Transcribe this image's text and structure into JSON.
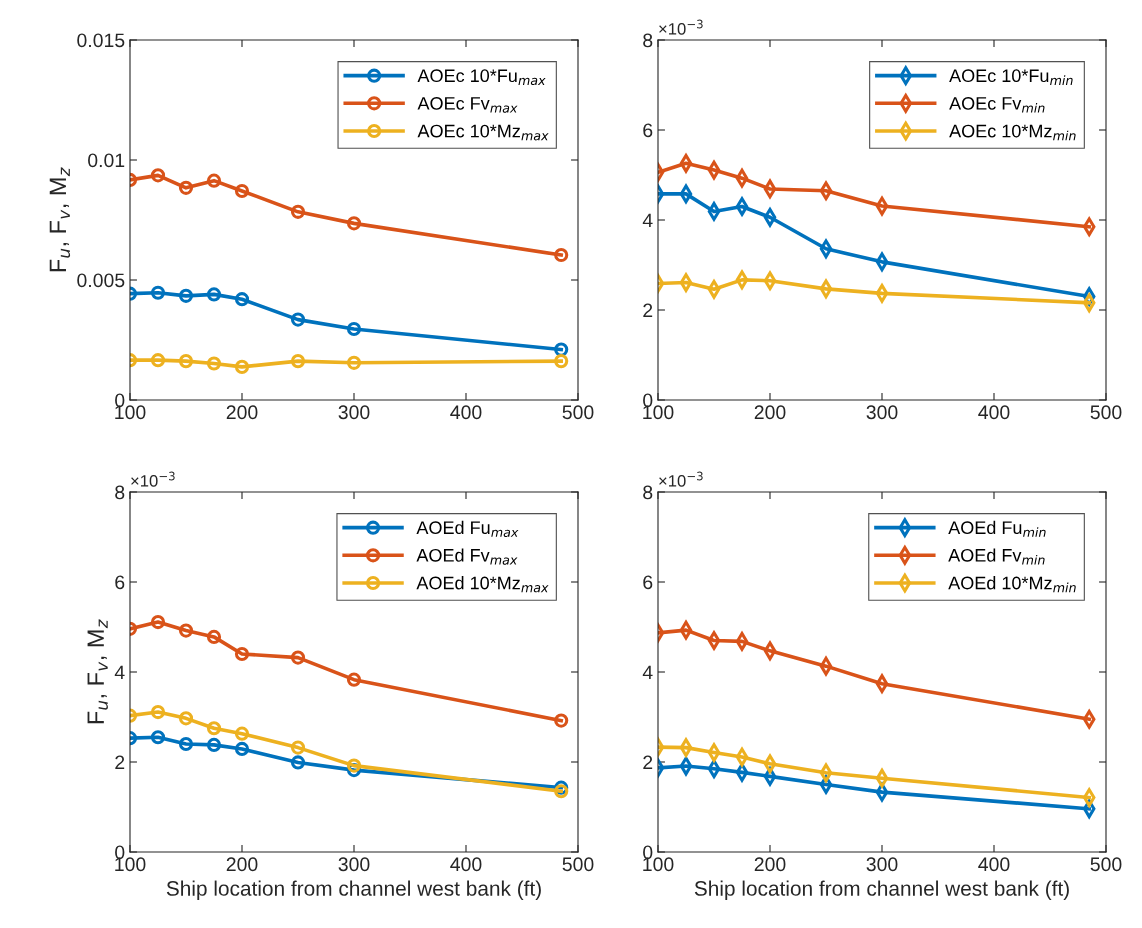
{
  "chart_data": [
    {
      "type": "line",
      "x": [
        100,
        125,
        150,
        175,
        200,
        250,
        300,
        485
      ],
      "ylabel": "F$_{u}$, F$_{v}$, M$_{z}$",
      "marker": "circle",
      "legend": "top right",
      "grid": false,
      "tick_labels": "xy",
      "xlim": [
        100,
        500
      ],
      "xticks": [
        100,
        200,
        300,
        400,
        500
      ],
      "ylim": [
        0,
        0.015
      ],
      "yticks": [
        0,
        0.005,
        0.01,
        0.015
      ],
      "series": [
        {
          "name": "AOEc 10*Fu$_{max}$",
          "color": "#0072bd",
          "values": [
            0.00443,
            0.00447,
            0.00434,
            0.0044,
            0.0042,
            0.00335,
            0.00296,
            0.0021
          ]
        },
        {
          "name": "AOEc Fv$_{max}$",
          "color": "#d95319",
          "values": [
            0.00917,
            0.00936,
            0.00884,
            0.00914,
            0.00871,
            0.00784,
            0.00736,
            0.00604
          ]
        },
        {
          "name": "AOEc 10*Mz$_{max}$",
          "color": "#edb120",
          "values": [
            0.00166,
            0.00166,
            0.00162,
            0.00152,
            0.00138,
            0.00162,
            0.00155,
            0.00162
          ]
        }
      ]
    },
    {
      "type": "line",
      "x": [
        100,
        125,
        150,
        175,
        200,
        250,
        300,
        485
      ],
      "marker": "diamond",
      "legend": "top right",
      "grid": false,
      "annotations": [
        "×10$^{−3}$"
      ],
      "xlim": [
        100,
        500
      ],
      "xticks": [
        100,
        200,
        300,
        400,
        500
      ],
      "ylim": [
        0,
        8
      ],
      "yticks": [
        0,
        2,
        4,
        6,
        8
      ],
      "series": [
        {
          "name": "AOEc 10*Fu$_{min}$",
          "color": "#0072bd",
          "values": [
            4.58,
            4.58,
            4.19,
            4.3,
            4.06,
            3.36,
            3.07,
            2.3
          ]
        },
        {
          "name": "AOEc Fv$_{min}$",
          "color": "#d95319",
          "values": [
            5.06,
            5.26,
            5.11,
            4.93,
            4.69,
            4.65,
            4.31,
            3.85
          ]
        },
        {
          "name": "AOEc 10*Mz$_{min}$",
          "color": "#edb120",
          "values": [
            2.59,
            2.61,
            2.46,
            2.67,
            2.65,
            2.47,
            2.37,
            2.16
          ]
        }
      ]
    },
    {
      "type": "line",
      "x": [
        100,
        125,
        150,
        175,
        200,
        250,
        300,
        485
      ],
      "xlabel": "Ship location from channel west bank (ft)",
      "ylabel": "F$_{u}$, F$_{v}$, M$_{z}$",
      "marker": "circle",
      "legend": "top right",
      "grid": false,
      "annotations": [
        "×10$^{−3}$"
      ],
      "xlim": [
        100,
        500
      ],
      "xticks": [
        100,
        200,
        300,
        400,
        500
      ],
      "ylim": [
        0,
        8
      ],
      "yticks": [
        0,
        2,
        4,
        6,
        8
      ],
      "series": [
        {
          "name": "AOEd Fu$_{max}$",
          "color": "#0072bd",
          "values": [
            2.53,
            2.55,
            2.4,
            2.38,
            2.29,
            1.99,
            1.82,
            1.43
          ]
        },
        {
          "name": "AOEd Fv$_{max}$",
          "color": "#d95319",
          "values": [
            4.96,
            5.11,
            4.92,
            4.78,
            4.4,
            4.32,
            3.83,
            2.92
          ]
        },
        {
          "name": "AOEd 10*Mz$_{max}$",
          "color": "#edb120",
          "values": [
            3.03,
            3.11,
            2.97,
            2.75,
            2.63,
            2.32,
            1.92,
            1.35
          ]
        }
      ]
    },
    {
      "type": "line",
      "x": [
        100,
        125,
        150,
        175,
        200,
        250,
        300,
        485
      ],
      "xlabel": "Ship location from channel west bank (ft)",
      "marker": "diamond",
      "legend": "top right",
      "grid": false,
      "annotations": [
        "×10$^{−3}$"
      ],
      "xlim": [
        100,
        500
      ],
      "xticks": [
        100,
        200,
        300,
        400,
        500
      ],
      "ylim": [
        0,
        8
      ],
      "yticks": [
        0,
        2,
        4,
        6,
        8
      ],
      "series": [
        {
          "name": "AOEd Fu$_{min}$",
          "color": "#0072bd",
          "values": [
            1.87,
            1.91,
            1.85,
            1.77,
            1.68,
            1.5,
            1.33,
            0.96
          ]
        },
        {
          "name": "AOEd Fv$_{min}$",
          "color": "#d95319",
          "values": [
            4.87,
            4.93,
            4.7,
            4.68,
            4.47,
            4.13,
            3.74,
            2.95
          ]
        },
        {
          "name": "AOEd 10*Mz$_{min}$",
          "color": "#edb120",
          "values": [
            2.33,
            2.32,
            2.21,
            2.11,
            1.96,
            1.76,
            1.64,
            1.21
          ]
        }
      ]
    }
  ]
}
